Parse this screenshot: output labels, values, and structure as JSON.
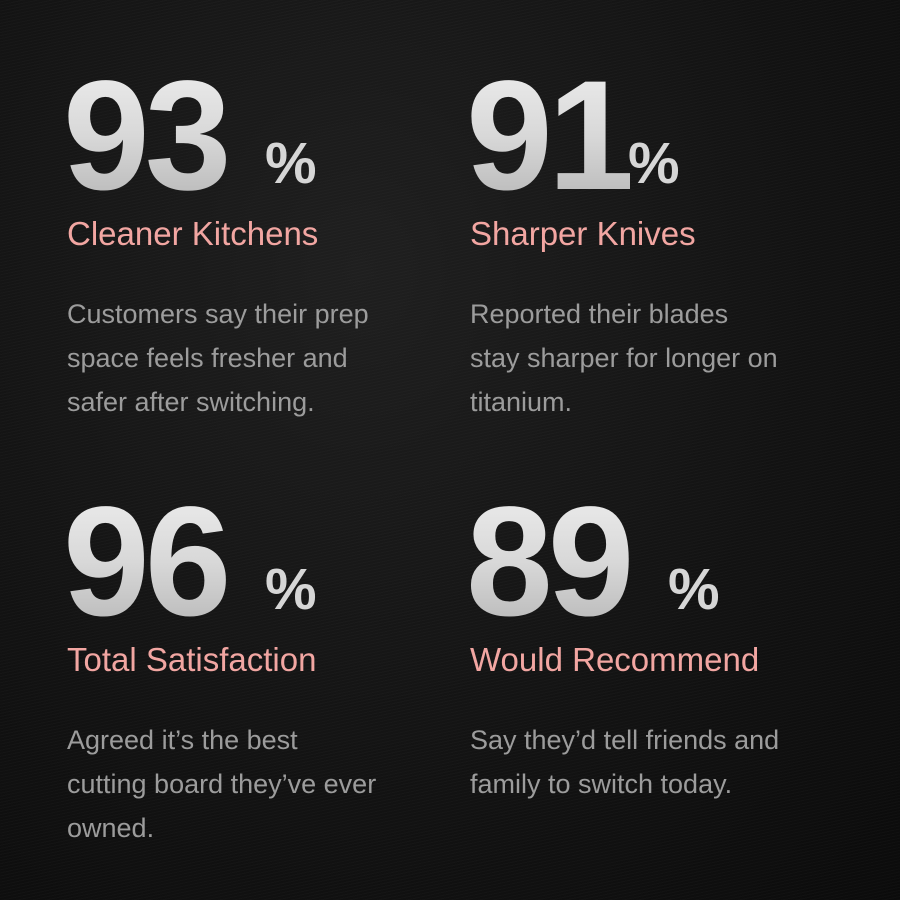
{
  "stats": [
    {
      "value": "93",
      "unit": "%",
      "title": "Cleaner Kitchens",
      "lines": [
        "Customers say their prep",
        "space feels fresher and",
        "safer after switching."
      ]
    },
    {
      "value": "91",
      "unit": "%",
      "title": "Sharper Knives",
      "lines": [
        "Reported their blades",
        "stay sharper for longer on",
        "titanium."
      ]
    },
    {
      "value": "96",
      "unit": "%",
      "title": "Total Satisfaction",
      "lines": [
        "Agreed it’s the best",
        "cutting board they’ve ever",
        "owned."
      ]
    },
    {
      "value": "89",
      "unit": "%",
      "title": "Would Recommend",
      "lines": [
        "Say they’d tell friends and",
        "family to switch today."
      ]
    }
  ],
  "colors": {
    "heading": "#f2a6a2",
    "body": "#9c9c9c",
    "number": "#e0e0e0",
    "background": "#141414"
  }
}
